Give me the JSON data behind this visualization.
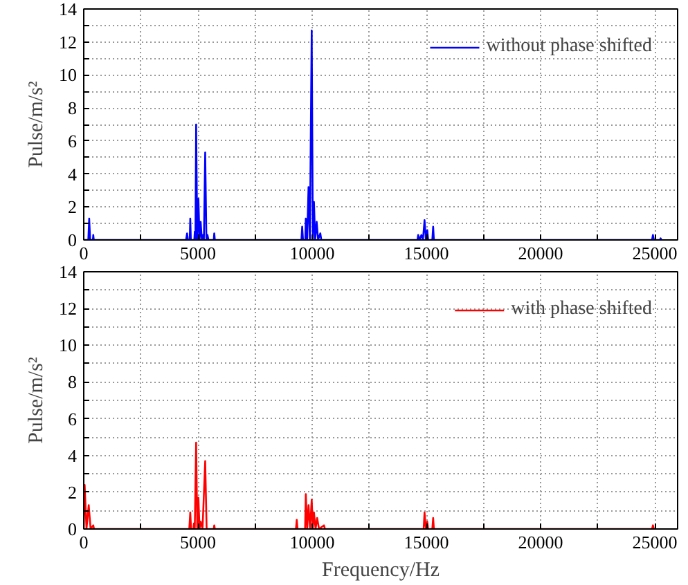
{
  "chart_data": [
    {
      "type": "line",
      "ylabel": "Pulse/m/s²",
      "xlim": [
        0,
        26000
      ],
      "ylim": [
        0,
        14
      ],
      "xticks": [
        0,
        {
          "value": 2500,
          "label": null
        },
        5000,
        {
          "value": 7500,
          "label": null
        },
        10000,
        {
          "value": 12500,
          "label": null
        },
        15000,
        {
          "value": 17500,
          "label": null
        },
        20000,
        {
          "value": 22500,
          "label": null
        },
        25000
      ],
      "yticks": [
        0,
        {
          "value": 1,
          "label": null
        },
        2,
        {
          "value": 3,
          "label": null
        },
        4,
        {
          "value": 5,
          "label": null
        },
        6,
        {
          "value": 7,
          "label": null
        },
        8,
        {
          "value": 9,
          "label": null
        },
        10,
        {
          "value": 11,
          "label": null
        },
        12,
        {
          "value": 13,
          "label": null
        },
        14
      ],
      "grid": true,
      "legend": "top right",
      "line_style": "solid",
      "series": [
        {
          "name": "without phase shifted",
          "color": "#0000ff",
          "x": [
            0,
            200,
            238,
            280,
            400,
            417,
            440,
            4480,
            4524,
            4560,
            4640,
            4663,
            4690,
            4840,
            4861,
            4890,
            4920,
            4970,
            5020,
            5070,
            5119,
            5170,
            5218,
            5260,
            5317,
            5370,
            5416,
            5460,
            5690,
            5714,
            5740,
            9530,
            9563,
            9600,
            9700,
            9722,
            9780,
            9841,
            9900,
            9980,
            10030,
            10079,
            10130,
            10198,
            10260,
            10357,
            10400,
            14610,
            14642,
            14700,
            14781,
            14850,
            14920,
            14980,
            15039,
            15080,
            15260,
            15297,
            15330,
            24880,
            24919,
            24960,
            25230,
            25256,
            25290
          ],
          "values": [
            0,
            0,
            1.3,
            0,
            0,
            0.3,
            0,
            0,
            0.4,
            0,
            0,
            1.3,
            0,
            0,
            0.5,
            0,
            7.0,
            0,
            2.5,
            0,
            1.1,
            0,
            0.3,
            0,
            5.3,
            0,
            0.3,
            0,
            0,
            0.4,
            0,
            0,
            0.8,
            0,
            0,
            1.3,
            0,
            3.2,
            0,
            12.7,
            0,
            2.3,
            0,
            1.1,
            0,
            0.4,
            0,
            0,
            0.3,
            0,
            0.3,
            0,
            1.2,
            0,
            0.6,
            0,
            0,
            0.8,
            0,
            0,
            0.3,
            0,
            0,
            0.1,
            0
          ]
        }
      ]
    },
    {
      "type": "line",
      "ylabel": "Pulse/m/s²",
      "xlabel": "Frequency/Hz",
      "xlim": [
        0,
        26000
      ],
      "ylim": [
        0,
        14
      ],
      "xticks": [
        0,
        {
          "value": 2500,
          "label": null
        },
        5000,
        {
          "value": 7500,
          "label": null
        },
        10000,
        {
          "value": 12500,
          "label": null
        },
        15000,
        {
          "value": 17500,
          "label": null
        },
        20000,
        {
          "value": 22500,
          "label": null
        },
        25000
      ],
      "yticks": [
        0,
        {
          "value": 1,
          "label": null
        },
        2,
        {
          "value": 3,
          "label": null
        },
        4,
        {
          "value": 5,
          "label": null
        },
        6,
        {
          "value": 7,
          "label": null
        },
        8,
        {
          "value": 9,
          "label": null
        },
        10,
        {
          "value": 11,
          "label": null
        },
        12,
        {
          "value": 13,
          "label": null
        },
        14
      ],
      "grid": true,
      "legend": "top right",
      "line_style": "solid",
      "series": [
        {
          "name": "with phase shifted",
          "color": "#ff0000",
          "x": [
            0,
            40,
            120,
            218,
            300,
            417,
            450,
            4620,
            4663,
            4700,
            4800,
            4821,
            4860,
            4920,
            4970,
            5020,
            5070,
            5119,
            5200,
            5317,
            5380,
            5690,
            5714,
            5740,
            9290,
            9325,
            9360,
            9690,
            9722,
            9780,
            9841,
            9910,
            9980,
            10030,
            10079,
            10150,
            10218,
            10300,
            10516,
            10560,
            14880,
            14920,
            14980,
            15039,
            15080,
            15260,
            15297,
            15330,
            24880,
            24919,
            24960
          ],
          "values": [
            0,
            2.4,
            0,
            1.3,
            0,
            0.2,
            0,
            0,
            0.9,
            0,
            0,
            0.3,
            0,
            4.7,
            0,
            1.7,
            0,
            0.4,
            0,
            3.7,
            0,
            0,
            0.2,
            0,
            0,
            0.5,
            0,
            0,
            1.9,
            0,
            1.3,
            0,
            1.6,
            0,
            0.9,
            0,
            0.6,
            0,
            0.2,
            0,
            0,
            0.9,
            0,
            0.4,
            0,
            0,
            0.6,
            0,
            0,
            0.2,
            0
          ]
        }
      ]
    }
  ]
}
